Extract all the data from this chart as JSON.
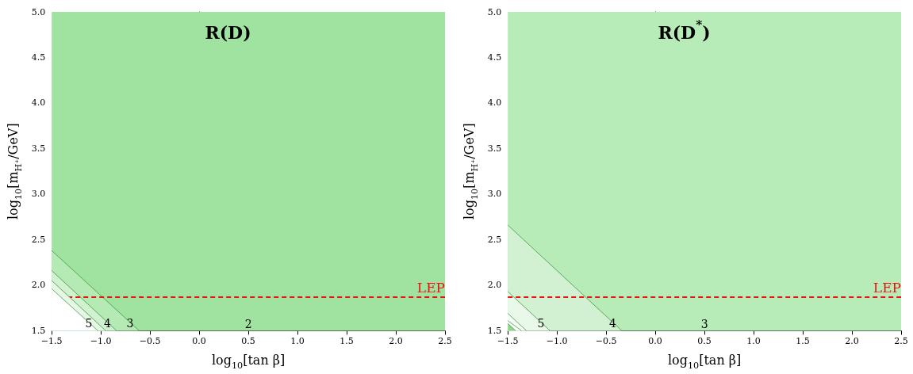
{
  "chart_data": [
    {
      "type": "area",
      "title": "R(D)",
      "xlabel": "log$_{10}$[tan β]",
      "ylabel": "log$_{10}$[m$_{H⁺}$/GeV]",
      "xlim": [
        -1.5,
        2.5
      ],
      "ylim": [
        1.5,
        5.0
      ],
      "xticks": [
        {
          "value": -1.5,
          "label": "−1.5"
        },
        {
          "value": -1.0,
          "label": "−1.0"
        },
        {
          "value": -0.5,
          "label": "−0.5"
        },
        {
          "value": 0,
          "label": "0.0"
        },
        {
          "value": 0.5,
          "label": "0.5"
        },
        {
          "value": 1,
          "label": "1.0"
        },
        {
          "value": 1.5,
          "label": "1.5"
        },
        {
          "value": 2,
          "label": "2.0"
        },
        {
          "value": 2.5,
          "label": "2.5"
        }
      ],
      "yticks": [
        {
          "value": 1.5,
          "label": "1.5"
        },
        {
          "value": 2,
          "label": "2.0"
        },
        {
          "value": 2.5,
          "label": "2.5"
        },
        {
          "value": 3,
          "label": "3.0"
        },
        {
          "value": 3.5,
          "label": "3.5"
        },
        {
          "value": 4,
          "label": "4.0"
        },
        {
          "value": 4.5,
          "label": "4.5"
        },
        {
          "value": 5,
          "label": "5.0"
        }
      ],
      "series": [
        {
          "name": "3",
          "color": "#b5eab5",
          "x": [
            -1.5,
            -0.61
          ],
          "values": [
            2.38,
            1.5
          ]
        },
        {
          "name": "4",
          "color": "#d0f2d0",
          "x": [
            -1.5,
            -0.84
          ],
          "values": [
            2.16,
            1.5
          ]
        },
        {
          "color": "#e6f7e6",
          "x": [
            -1.5,
            -0.95
          ],
          "values": [
            2.05,
            1.5
          ]
        },
        {
          "name": "5",
          "color": "#ffffff",
          "x": [
            -1.5,
            -1.03
          ],
          "values": [
            1.96,
            1.5
          ]
        }
      ],
      "bands": [
        {
          "axis": "y",
          "from": 1.5,
          "to": 5.0,
          "color": "#a0e3a0",
          "label": "2"
        }
      ],
      "ref_lines": [
        {
          "axis": "y",
          "value": 1.87,
          "label": "LEP",
          "color": "#ee1111",
          "line_style": "dashed"
        }
      ]
    },
    {
      "type": "area",
      "title": "R(D$^{*}$)",
      "xlabel": "log$_{10}$[tan β]",
      "ylabel": "log$_{10}$[m$_{H⁺}$/GeV]",
      "xlim": [
        -1.5,
        2.5
      ],
      "ylim": [
        1.5,
        5.0
      ],
      "xticks": [
        {
          "value": -1.5,
          "label": "−1.5"
        },
        {
          "value": -1.0,
          "label": "−1.0"
        },
        {
          "value": -0.5,
          "label": "−0.5"
        },
        {
          "value": 0,
          "label": "0.0"
        },
        {
          "value": 0.5,
          "label": "0.5"
        },
        {
          "value": 1,
          "label": "1.0"
        },
        {
          "value": 1.5,
          "label": "1.5"
        },
        {
          "value": 2,
          "label": "2.0"
        },
        {
          "value": 2.5,
          "label": "2.5"
        }
      ],
      "yticks": [
        {
          "value": 1.5,
          "label": "1.5"
        },
        {
          "value": 2,
          "label": "2.0"
        },
        {
          "value": 2.5,
          "label": "2.5"
        },
        {
          "value": 3,
          "label": "3.0"
        },
        {
          "value": 3.5,
          "label": "3.5"
        },
        {
          "value": 4,
          "label": "4.0"
        },
        {
          "value": 4.5,
          "label": "4.5"
        },
        {
          "value": 5,
          "label": "5.0"
        }
      ],
      "series": [
        {
          "name": "4",
          "color": "#d2f0d2",
          "x": [
            -1.5,
            -0.34
          ],
          "values": [
            2.66,
            1.5
          ]
        },
        {
          "name": "5",
          "color": "#eaf8ea",
          "x": [
            -1.5,
            -1.07
          ],
          "values": [
            1.93,
            1.5
          ]
        },
        {
          "color": "#f5fcf5",
          "x": [
            -1.5,
            -1.31
          ],
          "values": [
            1.69,
            1.5
          ]
        },
        {
          "color": "#ffffff",
          "x": [
            -1.5,
            -1.36
          ],
          "values": [
            1.61,
            1.5
          ]
        },
        {
          "color": "#8cd68c",
          "x": [
            -1.5,
            -1.42
          ],
          "values": [
            1.58,
            1.5
          ]
        }
      ],
      "bands": [
        {
          "axis": "y",
          "from": 1.5,
          "to": 5.0,
          "color": "#b7ebb7",
          "label": "3"
        }
      ],
      "ref_lines": [
        {
          "axis": "y",
          "value": 1.87,
          "label": "LEP",
          "color": "#ee1111",
          "line_style": "dashed"
        }
      ]
    }
  ]
}
